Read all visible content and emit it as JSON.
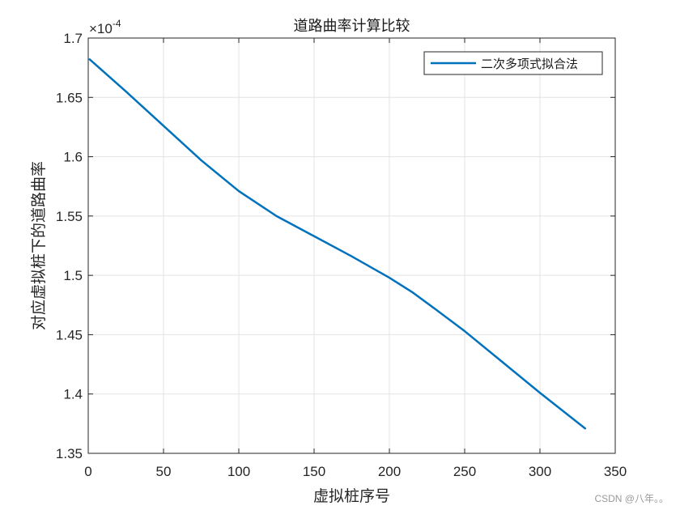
{
  "chart_data": {
    "type": "line",
    "title": "道路曲率计算比较",
    "xlabel": "虚拟桩序号",
    "ylabel": "对应虚拟桩下的道路曲率",
    "xlim": [
      0,
      350
    ],
    "ylim": [
      1.35,
      1.7
    ],
    "y_exponent_label": "×10",
    "y_exponent_power": "-4",
    "x_ticks": [
      {
        "value": 0,
        "label": "0"
      },
      {
        "value": 50,
        "label": "50"
      },
      {
        "value": 100,
        "label": "100"
      },
      {
        "value": 150,
        "label": "150"
      },
      {
        "value": 200,
        "label": "200"
      },
      {
        "value": 250,
        "label": "250"
      },
      {
        "value": 300,
        "label": "300"
      },
      {
        "value": 350,
        "label": "350"
      }
    ],
    "y_ticks": [
      {
        "value": 1.35,
        "label": "1.35"
      },
      {
        "value": 1.4,
        "label": "1.4"
      },
      {
        "value": 1.45,
        "label": "1.45"
      },
      {
        "value": 1.5,
        "label": "1.5"
      },
      {
        "value": 1.55,
        "label": "1.55"
      },
      {
        "value": 1.6,
        "label": "1.6"
      },
      {
        "value": 1.65,
        "label": "1.65"
      },
      {
        "value": 1.7,
        "label": "1.7"
      }
    ],
    "grid": true,
    "legend_position": "top-right",
    "series": [
      {
        "name": "二次多项式拟合法",
        "color": "#0072BD",
        "x": [
          1,
          25,
          50,
          75,
          100,
          125,
          150,
          175,
          200,
          215,
          230,
          250,
          275,
          300,
          330
        ],
        "y": [
          1.682,
          1.655,
          1.626,
          1.597,
          1.571,
          1.55,
          1.533,
          1.516,
          1.498,
          1.486,
          1.472,
          1.453,
          1.427,
          1.401,
          1.371
        ]
      }
    ]
  },
  "watermark": "CSDN @八年。。"
}
